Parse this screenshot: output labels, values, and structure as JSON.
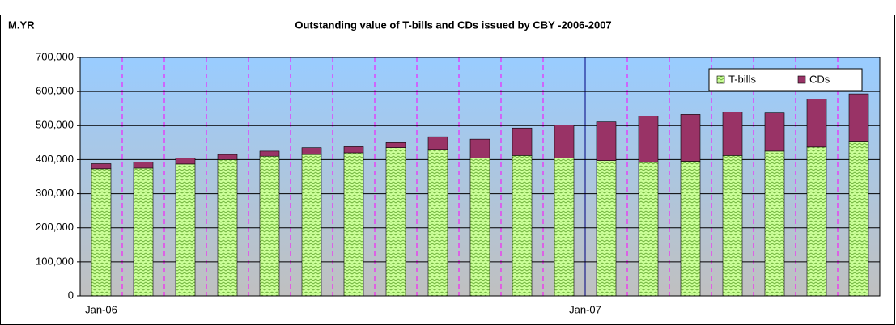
{
  "chart_data": {
    "type": "stacked_bar",
    "title": "Outstanding value of T-bills and CDs issued by CBY -2006-2007",
    "y_label": "M.YR",
    "categories": [
      "Jan-06",
      null,
      null,
      null,
      null,
      null,
      null,
      null,
      null,
      null,
      null,
      null,
      "Jan-07",
      null,
      null,
      null,
      null,
      null,
      null
    ],
    "series": [
      {
        "name": "T-bills",
        "color": "#ccff99",
        "values": [
          373000,
          375000,
          387000,
          400000,
          410000,
          415000,
          420000,
          435000,
          430000,
          405000,
          412000,
          405000,
          397000,
          392000,
          395000,
          412000,
          425000,
          437000,
          452000
        ]
      },
      {
        "name": "CDs",
        "color": "#993366",
        "values": [
          15000,
          18000,
          18000,
          15000,
          15000,
          20000,
          18000,
          15000,
          37000,
          55000,
          81000,
          97000,
          114000,
          136000,
          138000,
          128000,
          112000,
          141000,
          141000
        ]
      }
    ],
    "ylim": [
      0,
      700000
    ],
    "yticks": [
      0,
      {
        "value": 100000,
        "label": "100,000"
      },
      {
        "value": 200000,
        "label": "200,000"
      },
      {
        "value": 300000,
        "label": "300,000"
      },
      {
        "value": 400000,
        "label": "400,000"
      },
      {
        "value": 500000,
        "label": "500,000"
      },
      {
        "value": 600000,
        "label": "600,000"
      },
      {
        "value": 700000,
        "label": "700,000"
      }
    ],
    "grid": true,
    "legend": "top-right"
  }
}
